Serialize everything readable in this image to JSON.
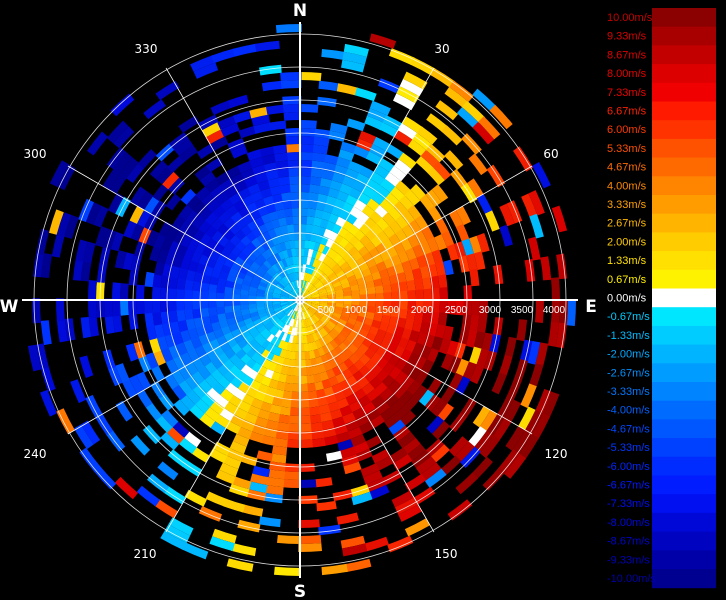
{
  "cardinals": {
    "north": "N",
    "south": "S",
    "east": "E",
    "west": "W"
  },
  "azimuth_labels": [
    "30",
    "60",
    "120",
    "150",
    "210",
    "240",
    "300",
    "330"
  ],
  "range_labels": [
    "500",
    "1000",
    "1500",
    "2000",
    "2500",
    "3000",
    "3500",
    "4000"
  ],
  "colorbar": {
    "labels": [
      "10.00m/s",
      "9.33m/s",
      "8.67m/s",
      "8.00m/s",
      "7.33m/s",
      "6.67m/s",
      "6.00m/s",
      "5.33m/s",
      "4.67m/s",
      "4.00m/s",
      "3.33m/s",
      "2.67m/s",
      "2.00m/s",
      "1.33m/s",
      "0.67m/s",
      "0.00m/s",
      "-0.67m/s",
      "-1.33m/s",
      "-2.00m/s",
      "-2.67m/s",
      "-3.33m/s",
      "-4.00m/s",
      "-4.67m/s",
      "-5.33m/s",
      "-6.00m/s",
      "-6.67m/s",
      "-7.33m/s",
      "-8.00m/s",
      "-8.67m/s",
      "-9.33m/s",
      "-10.00m/s"
    ],
    "colors": [
      "#8b0000",
      "#a80000",
      "#c20000",
      "#dc0000",
      "#f00000",
      "#ff1a00",
      "#ff3300",
      "#ff5200",
      "#ff6a00",
      "#ff8400",
      "#ff9c00",
      "#ffb400",
      "#ffcc00",
      "#ffe000",
      "#fff200",
      "#ffffff",
      "#00e6ff",
      "#00ccff",
      "#00b4ff",
      "#009cff",
      "#0084ff",
      "#006cff",
      "#0056ff",
      "#0040ff",
      "#002cff",
      "#001cff",
      "#0010f0",
      "#0008d8",
      "#0004c0",
      "#0000a8",
      "#000090"
    ],
    "label_colors": [
      "#c80000",
      "#d80000",
      "#e00000",
      "#e80000",
      "#f00000",
      "#ff2000",
      "#ff3800",
      "#ff5000",
      "#ff6c00",
      "#ff8800",
      "#ffa000",
      "#ffb800",
      "#ffcc00",
      "#ffe000",
      "#fff000",
      "#ffffff",
      "#00ccff",
      "#00bbff",
      "#00a8ff",
      "#0090ff",
      "#0078ff",
      "#0060ff",
      "#0048ff",
      "#0036ff",
      "#0026ff",
      "#0018ff",
      "#000cf0",
      "#0008d8",
      "#0004c8",
      "#0000b8",
      "#0000a8"
    ]
  }
}
